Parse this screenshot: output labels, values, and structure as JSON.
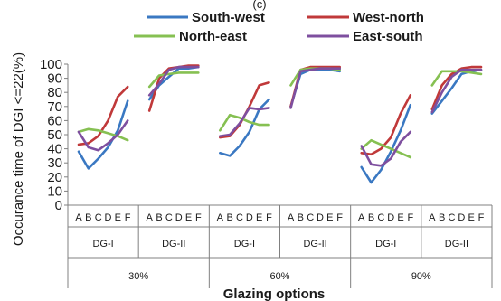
{
  "chart_data": {
    "type": "line",
    "top_label": "(c)",
    "xlabel": "Glazing options",
    "ylabel": "Occurance time of DGI <=22(%)",
    "ylim": [
      0,
      100
    ],
    "yticks": [
      0,
      10,
      20,
      30,
      40,
      50,
      60,
      70,
      80,
      90,
      100
    ],
    "grid": false,
    "legend_position": "top",
    "categories": [
      "A",
      "B",
      "C",
      "D",
      "E",
      "F"
    ],
    "groups": [
      {
        "ratio": "30%",
        "dg": "DG-I"
      },
      {
        "ratio": "30%",
        "dg": "DG-II"
      },
      {
        "ratio": "60%",
        "dg": "DG-I"
      },
      {
        "ratio": "60%",
        "dg": "DG-II"
      },
      {
        "ratio": "90%",
        "dg": "DG-I"
      },
      {
        "ratio": "90%",
        "dg": "DG-II"
      }
    ],
    "ratios": [
      "30%",
      "60%",
      "90%"
    ],
    "series": [
      {
        "name": "South-west",
        "color": "#3a78c2",
        "values": [
          [
            38,
            26,
            33,
            41,
            53,
            74
          ],
          [
            75,
            85,
            91,
            97,
            97,
            98
          ],
          [
            37,
            35,
            42,
            52,
            68,
            75
          ],
          [
            70,
            93,
            96,
            96,
            96,
            95
          ],
          [
            27,
            16,
            25,
            38,
            53,
            71
          ],
          [
            65,
            74,
            83,
            93,
            95,
            96
          ]
        ]
      },
      {
        "name": "West-north",
        "color": "#c0393a",
        "values": [
          [
            43,
            44,
            49,
            60,
            77,
            84
          ],
          [
            67,
            90,
            97,
            98,
            99,
            99
          ],
          [
            48,
            49,
            57,
            70,
            85,
            87
          ],
          [
            70,
            96,
            98,
            98,
            98,
            98
          ],
          [
            37,
            36,
            40,
            48,
            65,
            78
          ],
          [
            68,
            85,
            93,
            97,
            98,
            98
          ]
        ]
      },
      {
        "name": "North-east",
        "color": "#86c052",
        "values": [
          [
            52,
            54,
            53,
            51,
            49,
            46
          ],
          [
            84,
            92,
            93,
            94,
            94,
            94
          ],
          [
            53,
            64,
            62,
            59,
            57,
            57
          ],
          [
            85,
            96,
            97,
            97,
            97,
            96
          ],
          [
            40,
            46,
            43,
            40,
            37,
            34
          ],
          [
            85,
            95,
            95,
            95,
            94,
            93
          ]
        ]
      },
      {
        "name": "East-south",
        "color": "#7e4f9f",
        "values": [
          [
            52,
            41,
            39,
            44,
            50,
            60
          ],
          [
            78,
            86,
            96,
            98,
            98,
            98
          ],
          [
            49,
            50,
            58,
            69,
            68,
            69
          ],
          [
            69,
            95,
            96,
            97,
            97,
            97
          ],
          [
            42,
            29,
            28,
            33,
            45,
            52
          ],
          [
            66,
            80,
            91,
            96,
            96,
            96
          ]
        ]
      }
    ]
  }
}
